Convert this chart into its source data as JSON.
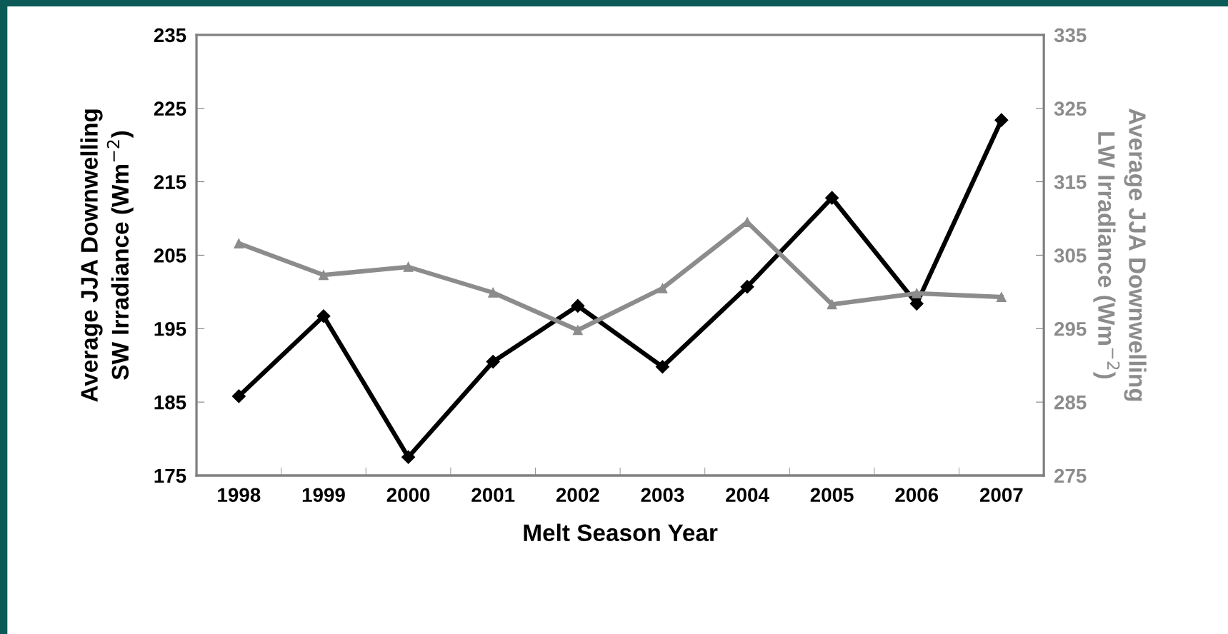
{
  "chart_data": {
    "type": "line",
    "xlabel": "Melt Season Year",
    "ylabel": "Average JJA Downwelling\nSW Irradiance (Wm$^{−2}$)",
    "y2label": "Average JJA Downwelling\nLW Irradiance (Wm$^{−2}$)",
    "categories": [
      "1998",
      "1999",
      "2000",
      "2001",
      "2002",
      "2003",
      "2004",
      "2005",
      "2006",
      "2007"
    ],
    "series": [
      {
        "color": "#000000",
        "marker": "diamond",
        "values": [
          185.8,
          196.7,
          177.5,
          190.5,
          198.1,
          189.8,
          200.7,
          212.8,
          198.4,
          223.4
        ]
      },
      {
        "color": "#8c8c8c",
        "marker": "triangle",
        "axis": "y2",
        "values": [
          306.6,
          302.3,
          303.4,
          299.9,
          294.8,
          300.5,
          309.5,
          298.3,
          299.8,
          299.3
        ]
      }
    ],
    "ylim": [
      175,
      235
    ],
    "yticks": [
      175,
      185,
      195,
      205,
      215,
      225,
      235
    ],
    "y2lim": [
      275,
      335
    ],
    "y2ticks": [
      275,
      285,
      295,
      305,
      315,
      325,
      335
    ],
    "grid": false,
    "legend": false,
    "line_style": "solid"
  }
}
